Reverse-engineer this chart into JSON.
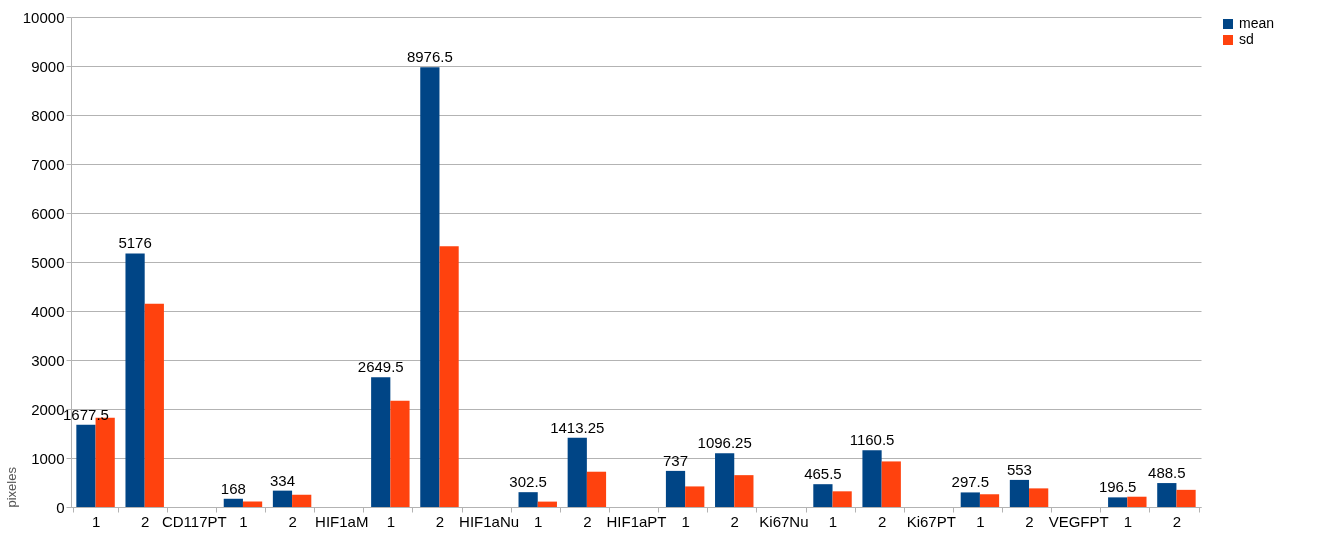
{
  "chart_data": {
    "type": "bar",
    "ylabel": "pixeles",
    "categories": [
      "1",
      "2",
      "CD117PT",
      "1",
      "2",
      "HIF1aM",
      "1",
      "2",
      "HIF1aNu",
      "1",
      "2",
      "HIF1aPT",
      "1",
      "2",
      "Ki67Nu",
      "1",
      "2",
      "Ki67PT",
      "1",
      "2",
      "VEGFPT",
      "1",
      "2"
    ],
    "series": [
      {
        "name": "mean",
        "color": "#004586",
        "values": [
          1677.5,
          5176,
          null,
          168,
          334,
          null,
          2649.5,
          8976.5,
          null,
          302.5,
          1413.25,
          null,
          737,
          1096.25,
          null,
          465.5,
          1160.5,
          null,
          297.5,
          553,
          null,
          196.5,
          488.5
        ],
        "value_labels": [
          "1677.5",
          "5176",
          null,
          "168",
          "334",
          null,
          "2649.5",
          "8976.5",
          null,
          "302.5",
          "1413.25",
          null,
          "737",
          "1096.25",
          null,
          "465.5",
          "1160.5",
          null,
          "297.5",
          "553",
          null,
          "196.5",
          "488.5"
        ]
      },
      {
        "name": "sd",
        "color": "#ff420e",
        "values": [
          1820,
          4150,
          null,
          110,
          250,
          null,
          2170,
          5320,
          null,
          110,
          720,
          null,
          420,
          650,
          null,
          320,
          930,
          null,
          260,
          380,
          null,
          210,
          350
        ]
      }
    ],
    "ylim": [
      0,
      10000
    ],
    "yticks": [
      0,
      1000,
      2000,
      3000,
      4000,
      5000,
      6000,
      7000,
      8000,
      9000,
      10000
    ],
    "grid": "y",
    "legend": "right"
  }
}
